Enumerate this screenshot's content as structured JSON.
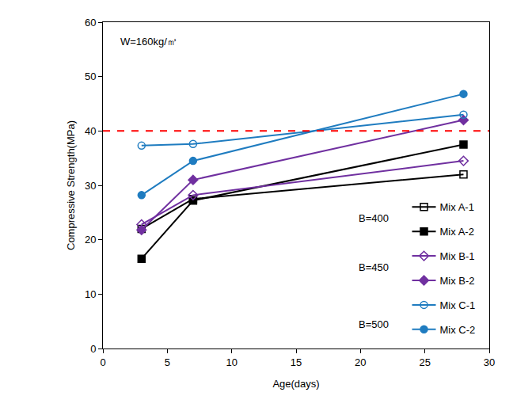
{
  "chart_data": {
    "type": "line",
    "x_label": "Age(days)",
    "y_label": "Compressive Strength(MPa)",
    "annotations": [
      "W=160kg/㎥",
      "B=400",
      "B=450",
      "B=500"
    ],
    "xlim": [
      0,
      30
    ],
    "xticks": [
      0,
      5,
      10,
      15,
      20,
      25,
      30
    ],
    "ylim": [
      0,
      60
    ],
    "yticks": [
      0,
      10,
      20,
      30,
      40,
      50,
      60
    ],
    "grid": false,
    "legend": "right",
    "x": [
      3,
      7,
      28
    ],
    "series": [
      {
        "name": "Mix A-1",
        "color": "#000000",
        "marker": "square-open",
        "values": [
          22,
          27.5,
          32
        ]
      },
      {
        "name": "Mix A-2",
        "color": "#000000",
        "marker": "square",
        "values": [
          16.5,
          27.2,
          37.5
        ]
      },
      {
        "name": "Mix B-1",
        "color": "#7030a0",
        "marker": "diamond-open",
        "values": [
          22.8,
          28.2,
          34.5
        ]
      },
      {
        "name": "Mix B-2",
        "color": "#7030a0",
        "marker": "diamond",
        "values": [
          21.8,
          31,
          42
        ]
      },
      {
        "name": "Mix C-1",
        "color": "#1f7cc0",
        "marker": "circle-open",
        "values": [
          37.3,
          37.6,
          43
        ]
      },
      {
        "name": "Mix C-2",
        "color": "#1f7cc0",
        "marker": "circle",
        "values": [
          28.2,
          34.5,
          46.8
        ]
      }
    ],
    "reference_lines": [
      {
        "y": 40,
        "color": "#ff0000",
        "line_style": "dash"
      }
    ]
  }
}
